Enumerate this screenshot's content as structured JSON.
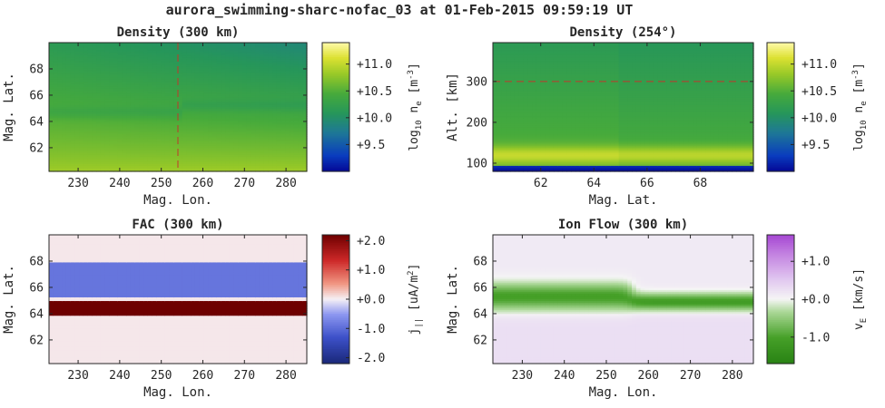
{
  "figure": {
    "title": "aurora_swimming-sharc-nofac_03 at 01-Feb-2015 09:59:19 UT"
  },
  "chart_data": [
    {
      "type": "heatmap",
      "title": "Density (300 km)",
      "xlabel": "Mag. Lon.",
      "ylabel": "Mag. Lat.",
      "xlim": [
        223,
        285
      ],
      "ylim": [
        60.2,
        70
      ],
      "xticks": [
        "230",
        "240",
        "250",
        "260",
        "270",
        "280"
      ],
      "yticks": [
        "62",
        "64",
        "66",
        "68"
      ],
      "xtick_values": [
        230,
        240,
        250,
        260,
        270,
        280
      ],
      "ytick_values": [
        62,
        64,
        66,
        68
      ],
      "colorbar": {
        "colormap": "viridis-like",
        "label": "log10 ne [m-3]",
        "label_main": "log",
        "label_sub": "10",
        "label_rest": " n",
        "label_sub2": "e",
        "label_unit": " [m",
        "label_sup": "-3",
        "label_end": "]",
        "range": [
          9.0,
          11.4
        ],
        "ticks": [
          "+11.0",
          "+10.5",
          "+10.0",
          "+9.5"
        ],
        "tick_values": [
          11.0,
          10.5,
          10.0,
          9.5
        ]
      },
      "reference_line": {
        "axis": "x",
        "value": 254,
        "color": "#c0392b"
      },
      "field_description": {
        "low_lat_value": 10.85,
        "high_lat_value": 10.15,
        "band_lat": 64.7,
        "band_value": 10.1
      }
    },
    {
      "type": "heatmap",
      "title": "Density (254°)",
      "xlabel": "Mag. Lat.",
      "ylabel": "Alt. [km]",
      "xlim": [
        60.2,
        70
      ],
      "ylim": [
        80,
        395
      ],
      "xticks": [
        "62",
        "64",
        "66",
        "68"
      ],
      "yticks": [
        "100",
        "200",
        "300"
      ],
      "xtick_values": [
        62,
        64,
        66,
        68
      ],
      "ytick_values": [
        100,
        200,
        300
      ],
      "colorbar": {
        "colormap": "viridis-like",
        "label": "log10 ne [m-3]",
        "label_main": "log",
        "label_sub": "10",
        "label_rest": " n",
        "label_sub2": "e",
        "label_unit": " [m",
        "label_sup": "-3",
        "label_end": "]",
        "range": [
          9.0,
          11.4
        ],
        "ticks": [
          "+11.0",
          "+10.5",
          "+10.0",
          "+9.5"
        ],
        "tick_values": [
          11.0,
          10.5,
          10.0,
          9.5
        ]
      },
      "reference_line": {
        "axis": "y",
        "value": 300,
        "color": "#c0392b"
      },
      "field_description": {
        "bottom_value": 9.0,
        "peak_alt": 120,
        "peak_value": 11.0,
        "top_value": 10.15
      }
    },
    {
      "type": "heatmap",
      "title": "FAC (300 km)",
      "xlabel": "Mag. Lon.",
      "ylabel": "Mag. Lat.",
      "xlim": [
        223,
        285
      ],
      "ylim": [
        60.2,
        70
      ],
      "xticks": [
        "230",
        "240",
        "250",
        "260",
        "270",
        "280"
      ],
      "yticks": [
        "62",
        "64",
        "66",
        "68"
      ],
      "xtick_values": [
        230,
        240,
        250,
        260,
        270,
        280
      ],
      "ytick_values": [
        62,
        64,
        66,
        68
      ],
      "colorbar": {
        "colormap": "red-white-blue",
        "label": "j|| [uA/m2]",
        "label_main": "j",
        "label_sub": "||",
        "label_unit": " [uA/m",
        "label_sup": "2",
        "label_end": "]",
        "range": [
          -2.2,
          2.2
        ],
        "ticks": [
          "+2.0",
          "+1.0",
          "+0.0",
          "-1.0",
          "-2.0"
        ],
        "tick_values": [
          2.0,
          1.0,
          0.0,
          -1.0,
          -2.0
        ]
      },
      "bands": [
        {
          "lat_min": 65.3,
          "lat_max": 67.9,
          "value": -0.9
        },
        {
          "lat_min": 63.8,
          "lat_max": 65.0,
          "value": 2.2
        }
      ]
    },
    {
      "type": "heatmap",
      "title": "Ion Flow (300 km)",
      "xlabel": "Mag. Lon.",
      "ylabel": "Mag. Lat.",
      "xlim": [
        223,
        285
      ],
      "ylim": [
        60.2,
        70
      ],
      "xticks": [
        "230",
        "240",
        "250",
        "260",
        "270",
        "280"
      ],
      "yticks": [
        "62",
        "64",
        "66",
        "68"
      ],
      "xtick_values": [
        230,
        240,
        250,
        260,
        270,
        280
      ],
      "ytick_values": [
        62,
        64,
        66,
        68
      ],
      "colorbar": {
        "colormap": "purple-white-green",
        "label": "vE [km/s]",
        "label_main": "v",
        "label_sub": "E",
        "label_unit": " [km/s]",
        "range": [
          -1.7,
          1.7
        ],
        "ticks": [
          "+1.0",
          "+0.0",
          "-1.0"
        ],
        "tick_values": [
          1.0,
          0.0,
          -1.0
        ]
      },
      "bands": [
        {
          "lat_center": 65.3,
          "lat_width": 1.6,
          "value": -1.05,
          "lon_max": 256
        },
        {
          "lat_center": 64.9,
          "lat_width": 0.9,
          "value": -1.1,
          "lon_min": 256
        }
      ],
      "background_value": 0.25
    }
  ]
}
